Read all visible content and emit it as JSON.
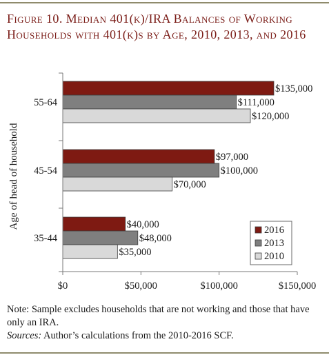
{
  "figure": {
    "title": "Figure 10. Median 401(k)/IRA Balances of Working Households with 401(k)s by Age, 2010, 2013, and 2016",
    "note": "Note: Sample excludes households that are not working and those that have only an IRA.",
    "sources_label": "Sources:",
    "sources_text": " Author’s calculations from the 2010-2016 SCF."
  },
  "colors": {
    "s2016": "#7e1a12",
    "s2013": "#7f7f7f",
    "s2010": "#d9d9d9",
    "title": "#7a1c17",
    "rule": "#8f8b6c"
  },
  "chart_data": {
    "type": "bar",
    "orientation": "horizontal",
    "title": "",
    "xlabel": "",
    "ylabel": "Age of head of household",
    "categories": [
      "55-64",
      "45-54",
      "35-44"
    ],
    "series": [
      {
        "name": "2016",
        "values": [
          135000,
          97000,
          40000
        ],
        "labels": [
          "$135,000",
          "$97,000",
          "$40,000"
        ]
      },
      {
        "name": "2013",
        "values": [
          111000,
          100000,
          48000
        ],
        "labels": [
          "$111,000",
          "$100,000",
          "$48,000"
        ]
      },
      {
        "name": "2010",
        "values": [
          120000,
          70000,
          35000
        ],
        "labels": [
          "$120,000",
          "$70,000",
          "$35,000"
        ]
      }
    ],
    "xlim": [
      0,
      150000
    ],
    "xticks": [
      0,
      50000,
      100000,
      150000
    ],
    "xtick_labels": [
      "$0",
      "$50,000",
      "$100,000",
      "$150,000"
    ],
    "grid": false,
    "legend_position": "bottom-right"
  }
}
